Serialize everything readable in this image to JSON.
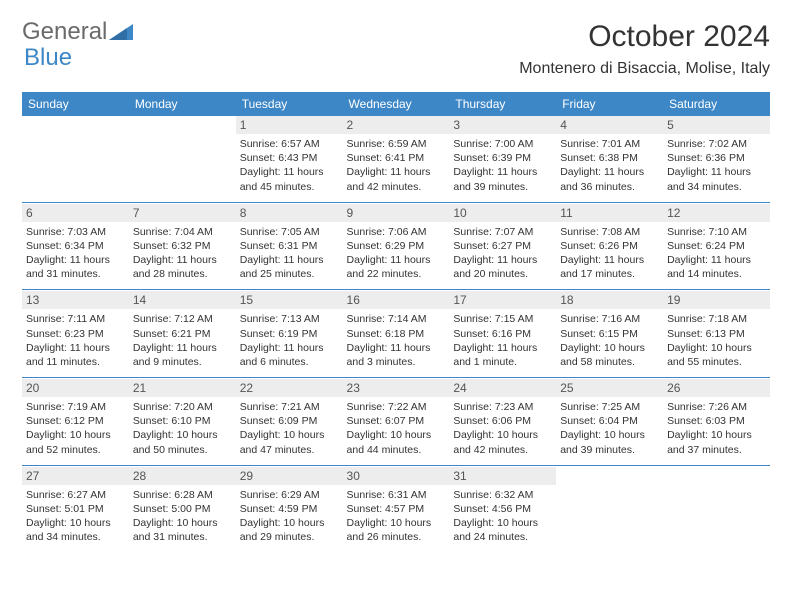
{
  "brand": {
    "part1": "General",
    "part2": "Blue",
    "accent_color": "#3d87c7",
    "gray_color": "#6a6a6a"
  },
  "title": "October 2024",
  "location": "Montenero di Bisaccia, Molise, Italy",
  "colors": {
    "header_bg": "#3d87c7",
    "header_text": "#ffffff",
    "daynum_bg": "#ededed",
    "body_text": "#333333",
    "page_bg": "#ffffff"
  },
  "fonts": {
    "title_size_pt": 30,
    "location_size_pt": 16,
    "dayhdr_size_pt": 12,
    "cell_size_pt": 10.5
  },
  "day_headers": [
    "Sunday",
    "Monday",
    "Tuesday",
    "Wednesday",
    "Thursday",
    "Friday",
    "Saturday"
  ],
  "weeks": [
    [
      null,
      null,
      {
        "n": "1",
        "sunrise": "6:57 AM",
        "sunset": "6:43 PM",
        "daylight": "11 hours and 45 minutes."
      },
      {
        "n": "2",
        "sunrise": "6:59 AM",
        "sunset": "6:41 PM",
        "daylight": "11 hours and 42 minutes."
      },
      {
        "n": "3",
        "sunrise": "7:00 AM",
        "sunset": "6:39 PM",
        "daylight": "11 hours and 39 minutes."
      },
      {
        "n": "4",
        "sunrise": "7:01 AM",
        "sunset": "6:38 PM",
        "daylight": "11 hours and 36 minutes."
      },
      {
        "n": "5",
        "sunrise": "7:02 AM",
        "sunset": "6:36 PM",
        "daylight": "11 hours and 34 minutes."
      }
    ],
    [
      {
        "n": "6",
        "sunrise": "7:03 AM",
        "sunset": "6:34 PM",
        "daylight": "11 hours and 31 minutes."
      },
      {
        "n": "7",
        "sunrise": "7:04 AM",
        "sunset": "6:32 PM",
        "daylight": "11 hours and 28 minutes."
      },
      {
        "n": "8",
        "sunrise": "7:05 AM",
        "sunset": "6:31 PM",
        "daylight": "11 hours and 25 minutes."
      },
      {
        "n": "9",
        "sunrise": "7:06 AM",
        "sunset": "6:29 PM",
        "daylight": "11 hours and 22 minutes."
      },
      {
        "n": "10",
        "sunrise": "7:07 AM",
        "sunset": "6:27 PM",
        "daylight": "11 hours and 20 minutes."
      },
      {
        "n": "11",
        "sunrise": "7:08 AM",
        "sunset": "6:26 PM",
        "daylight": "11 hours and 17 minutes."
      },
      {
        "n": "12",
        "sunrise": "7:10 AM",
        "sunset": "6:24 PM",
        "daylight": "11 hours and 14 minutes."
      }
    ],
    [
      {
        "n": "13",
        "sunrise": "7:11 AM",
        "sunset": "6:23 PM",
        "daylight": "11 hours and 11 minutes."
      },
      {
        "n": "14",
        "sunrise": "7:12 AM",
        "sunset": "6:21 PM",
        "daylight": "11 hours and 9 minutes."
      },
      {
        "n": "15",
        "sunrise": "7:13 AM",
        "sunset": "6:19 PM",
        "daylight": "11 hours and 6 minutes."
      },
      {
        "n": "16",
        "sunrise": "7:14 AM",
        "sunset": "6:18 PM",
        "daylight": "11 hours and 3 minutes."
      },
      {
        "n": "17",
        "sunrise": "7:15 AM",
        "sunset": "6:16 PM",
        "daylight": "11 hours and 1 minute."
      },
      {
        "n": "18",
        "sunrise": "7:16 AM",
        "sunset": "6:15 PM",
        "daylight": "10 hours and 58 minutes."
      },
      {
        "n": "19",
        "sunrise": "7:18 AM",
        "sunset": "6:13 PM",
        "daylight": "10 hours and 55 minutes."
      }
    ],
    [
      {
        "n": "20",
        "sunrise": "7:19 AM",
        "sunset": "6:12 PM",
        "daylight": "10 hours and 52 minutes."
      },
      {
        "n": "21",
        "sunrise": "7:20 AM",
        "sunset": "6:10 PM",
        "daylight": "10 hours and 50 minutes."
      },
      {
        "n": "22",
        "sunrise": "7:21 AM",
        "sunset": "6:09 PM",
        "daylight": "10 hours and 47 minutes."
      },
      {
        "n": "23",
        "sunrise": "7:22 AM",
        "sunset": "6:07 PM",
        "daylight": "10 hours and 44 minutes."
      },
      {
        "n": "24",
        "sunrise": "7:23 AM",
        "sunset": "6:06 PM",
        "daylight": "10 hours and 42 minutes."
      },
      {
        "n": "25",
        "sunrise": "7:25 AM",
        "sunset": "6:04 PM",
        "daylight": "10 hours and 39 minutes."
      },
      {
        "n": "26",
        "sunrise": "7:26 AM",
        "sunset": "6:03 PM",
        "daylight": "10 hours and 37 minutes."
      }
    ],
    [
      {
        "n": "27",
        "sunrise": "6:27 AM",
        "sunset": "5:01 PM",
        "daylight": "10 hours and 34 minutes."
      },
      {
        "n": "28",
        "sunrise": "6:28 AM",
        "sunset": "5:00 PM",
        "daylight": "10 hours and 31 minutes."
      },
      {
        "n": "29",
        "sunrise": "6:29 AM",
        "sunset": "4:59 PM",
        "daylight": "10 hours and 29 minutes."
      },
      {
        "n": "30",
        "sunrise": "6:31 AM",
        "sunset": "4:57 PM",
        "daylight": "10 hours and 26 minutes."
      },
      {
        "n": "31",
        "sunrise": "6:32 AM",
        "sunset": "4:56 PM",
        "daylight": "10 hours and 24 minutes."
      },
      null,
      null
    ]
  ],
  "labels": {
    "sunrise": "Sunrise:",
    "sunset": "Sunset:",
    "daylight": "Daylight:"
  }
}
